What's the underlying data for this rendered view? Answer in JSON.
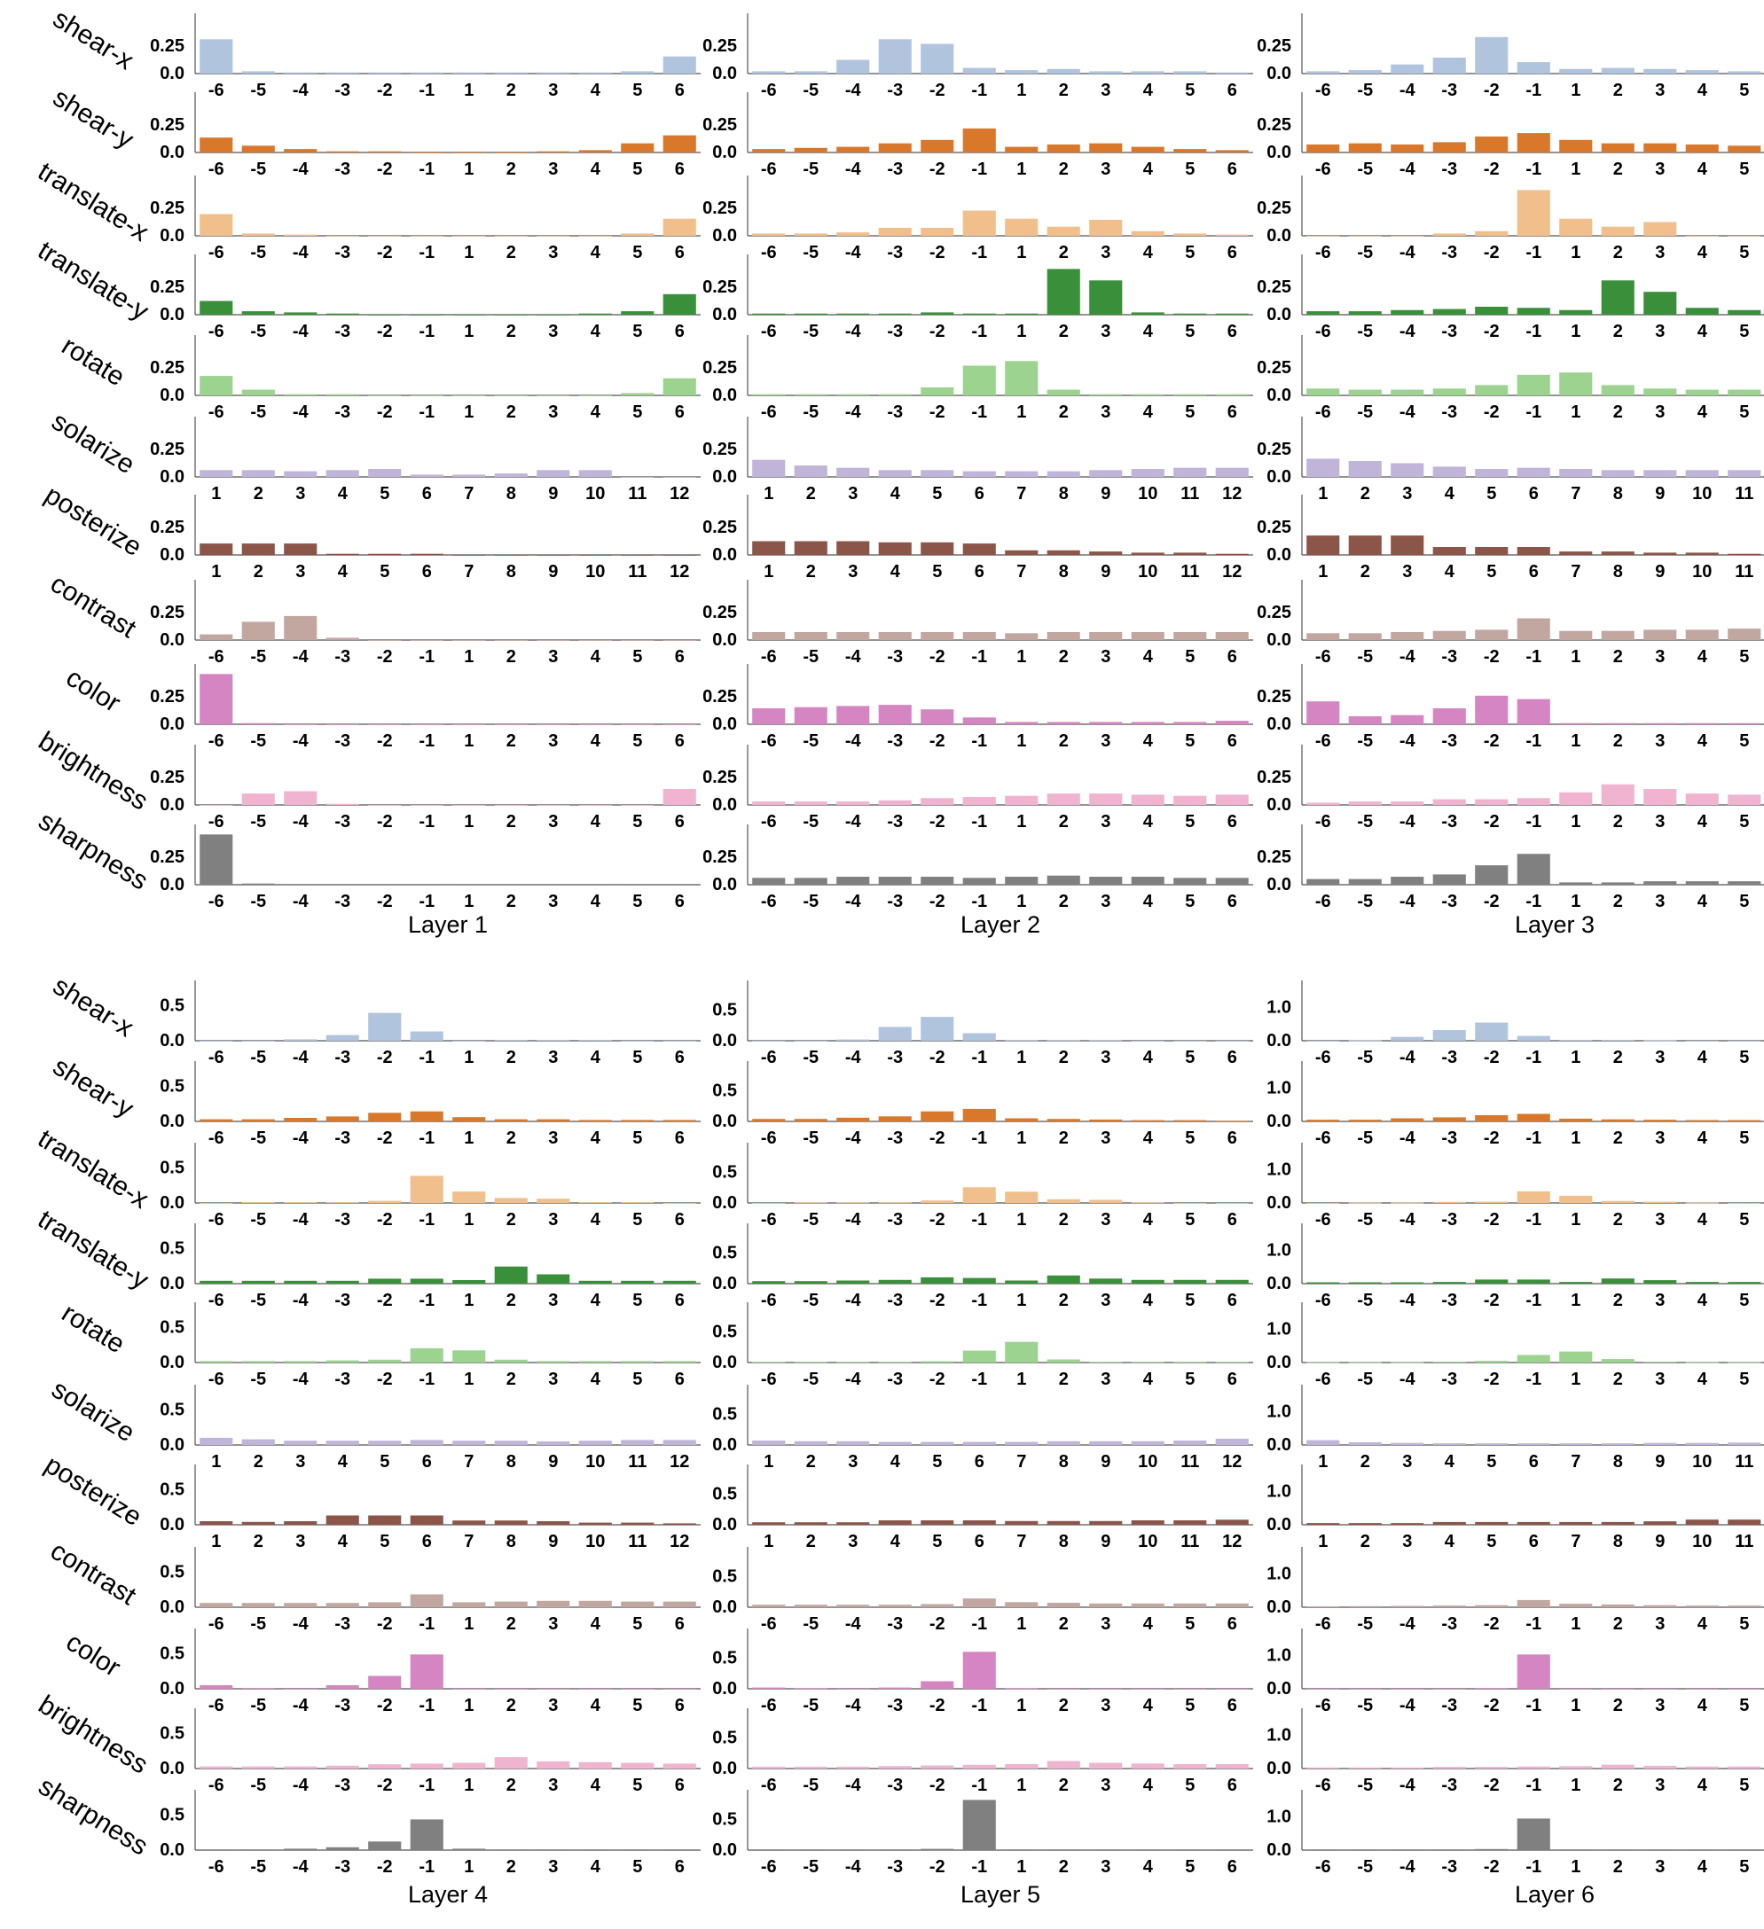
{
  "colors": {
    "shear-x": "#b0c4de",
    "shear-y": "#d9782b",
    "translate-x": "#f0bf8c",
    "translate-y": "#3a8f3a",
    "rotate": "#9bd38f",
    "solarize": "#c0b4d8",
    "posterize": "#8b5549",
    "contrast": "#c2a7a1",
    "color": "#d585c1",
    "brightness": "#f0b4d1",
    "sharpness": "#808080"
  },
  "chart_data": {
    "type": "bar",
    "operations": [
      "shear-x",
      "shear-y",
      "translate-x",
      "translate-y",
      "rotate",
      "solarize",
      "posterize",
      "contrast",
      "color",
      "brightness",
      "sharpness"
    ],
    "categories_signed": [
      "-6",
      "-5",
      "-4",
      "-3",
      "-2",
      "-1",
      "1",
      "2",
      "3",
      "4",
      "5",
      "6"
    ],
    "categories_levels": [
      "1",
      "2",
      "3",
      "4",
      "5",
      "6",
      "7",
      "8",
      "9",
      "10",
      "11",
      "12"
    ],
    "level_operations": [
      "solarize",
      "posterize"
    ],
    "grid": false,
    "legend": "none",
    "layers": [
      {
        "title": "Layer 1",
        "ytick_labels": [
          "0.0",
          "0.25"
        ],
        "ylim": [
          0,
          0.45
        ],
        "series": {
          "shear-x": [
            0.3,
            0.02,
            0.01,
            0.01,
            0.01,
            0.01,
            0.01,
            0.01,
            0.01,
            0.01,
            0.02,
            0.15
          ],
          "shear-y": [
            0.13,
            0.06,
            0.03,
            0.01,
            0.01,
            0.0,
            0.0,
            0.0,
            0.01,
            0.02,
            0.08,
            0.15
          ],
          "translate-x": [
            0.19,
            0.02,
            0.01,
            0.0,
            0.0,
            0.0,
            0.0,
            0.0,
            0.0,
            0.0,
            0.02,
            0.15
          ],
          "translate-y": [
            0.12,
            0.03,
            0.02,
            0.01,
            0.0,
            0.0,
            0.0,
            0.0,
            0.0,
            0.01,
            0.03,
            0.18
          ],
          "rotate": [
            0.17,
            0.05,
            0.01,
            0.01,
            0.0,
            0.0,
            0.0,
            0.0,
            0.0,
            0.0,
            0.02,
            0.15
          ],
          "solarize": [
            0.06,
            0.06,
            0.05,
            0.06,
            0.07,
            0.02,
            0.02,
            0.03,
            0.06,
            0.06,
            0.0,
            0.0
          ],
          "posterize": [
            0.1,
            0.1,
            0.1,
            0.01,
            0.01,
            0.01,
            0.0,
            0.0,
            0.0,
            0.0,
            0.0,
            0.0
          ],
          "contrast": [
            0.05,
            0.16,
            0.21,
            0.02,
            0.0,
            0.0,
            0.0,
            0.0,
            0.0,
            0.0,
            0.0,
            0.0
          ],
          "color": [
            0.44,
            0.01,
            0.0,
            0.0,
            0.0,
            0.0,
            0.0,
            0.0,
            0.0,
            0.0,
            0.0,
            0.0
          ],
          "brightness": [
            0.0,
            0.1,
            0.12,
            0.01,
            0.0,
            0.0,
            0.0,
            0.0,
            0.0,
            0.0,
            0.0,
            0.14
          ],
          "sharpness": [
            0.44,
            0.01,
            0.0,
            0.0,
            0.0,
            0.0,
            0.0,
            0.0,
            0.0,
            0.0,
            0.0,
            0.0
          ]
        }
      },
      {
        "title": "Layer 2",
        "ytick_labels": [
          "0.0",
          "0.25"
        ],
        "ylim": [
          0,
          0.45
        ],
        "series": {
          "shear-x": [
            0.02,
            0.02,
            0.12,
            0.3,
            0.26,
            0.05,
            0.03,
            0.04,
            0.02,
            0.02,
            0.02,
            0.01
          ],
          "shear-y": [
            0.03,
            0.04,
            0.05,
            0.08,
            0.11,
            0.21,
            0.05,
            0.07,
            0.08,
            0.05,
            0.03,
            0.02
          ],
          "translate-x": [
            0.02,
            0.02,
            0.03,
            0.07,
            0.07,
            0.22,
            0.15,
            0.08,
            0.14,
            0.04,
            0.02,
            0.01
          ],
          "translate-y": [
            0.01,
            0.01,
            0.01,
            0.01,
            0.02,
            0.01,
            0.01,
            0.4,
            0.3,
            0.02,
            0.01,
            0.01
          ],
          "rotate": [
            0.01,
            0.01,
            0.01,
            0.01,
            0.07,
            0.26,
            0.3,
            0.05,
            0.01,
            0.01,
            0.01,
            0.01
          ],
          "solarize": [
            0.15,
            0.1,
            0.08,
            0.06,
            0.06,
            0.05,
            0.05,
            0.05,
            0.06,
            0.07,
            0.08,
            0.08
          ],
          "posterize": [
            0.12,
            0.12,
            0.12,
            0.11,
            0.11,
            0.1,
            0.04,
            0.04,
            0.03,
            0.02,
            0.02,
            0.01
          ],
          "contrast": [
            0.07,
            0.07,
            0.07,
            0.07,
            0.07,
            0.07,
            0.06,
            0.07,
            0.07,
            0.07,
            0.07,
            0.07
          ],
          "color": [
            0.14,
            0.15,
            0.16,
            0.17,
            0.13,
            0.06,
            0.02,
            0.02,
            0.02,
            0.02,
            0.02,
            0.03
          ],
          "brightness": [
            0.03,
            0.03,
            0.03,
            0.04,
            0.06,
            0.07,
            0.08,
            0.1,
            0.1,
            0.09,
            0.08,
            0.09
          ],
          "sharpness": [
            0.06,
            0.06,
            0.07,
            0.07,
            0.07,
            0.06,
            0.07,
            0.08,
            0.07,
            0.07,
            0.06,
            0.06
          ]
        }
      },
      {
        "title": "Layer 3",
        "ytick_labels": [
          "0.0",
          "0.25"
        ],
        "ylim": [
          0,
          0.45
        ],
        "series": {
          "shear-x": [
            0.02,
            0.03,
            0.08,
            0.14,
            0.32,
            0.1,
            0.04,
            0.05,
            0.04,
            0.03,
            0.02,
            0.01
          ],
          "shear-y": [
            0.07,
            0.08,
            0.07,
            0.09,
            0.14,
            0.17,
            0.11,
            0.08,
            0.08,
            0.07,
            0.06,
            0.06
          ],
          "translate-x": [
            0.0,
            0.0,
            0.0,
            0.02,
            0.04,
            0.4,
            0.15,
            0.08,
            0.12,
            0.0,
            0.0,
            0.0
          ],
          "translate-y": [
            0.03,
            0.03,
            0.04,
            0.05,
            0.07,
            0.06,
            0.04,
            0.3,
            0.2,
            0.06,
            0.04,
            0.03
          ],
          "rotate": [
            0.06,
            0.05,
            0.05,
            0.06,
            0.09,
            0.18,
            0.2,
            0.09,
            0.06,
            0.05,
            0.05,
            0.05
          ],
          "solarize": [
            0.16,
            0.14,
            0.12,
            0.09,
            0.07,
            0.08,
            0.07,
            0.06,
            0.06,
            0.06,
            0.06,
            0.07
          ],
          "posterize": [
            0.17,
            0.17,
            0.17,
            0.07,
            0.07,
            0.07,
            0.03,
            0.03,
            0.02,
            0.02,
            0.01,
            0.01
          ],
          "contrast": [
            0.06,
            0.06,
            0.07,
            0.08,
            0.09,
            0.19,
            0.08,
            0.08,
            0.09,
            0.09,
            0.1,
            0.11
          ],
          "color": [
            0.2,
            0.07,
            0.08,
            0.14,
            0.25,
            0.22,
            0.01,
            0.01,
            0.01,
            0.01,
            0.01,
            0.01
          ],
          "brightness": [
            0.02,
            0.03,
            0.03,
            0.05,
            0.05,
            0.06,
            0.11,
            0.18,
            0.14,
            0.1,
            0.09,
            0.08
          ],
          "sharpness": [
            0.05,
            0.05,
            0.07,
            0.09,
            0.17,
            0.27,
            0.02,
            0.02,
            0.03,
            0.03,
            0.03,
            0.02
          ]
        }
      },
      {
        "title": "Layer 4",
        "ytick_labels": [
          "0.0",
          "0.5"
        ],
        "ylim": [
          0,
          0.72
        ],
        "series": {
          "shear-x": [
            0.0,
            0.0,
            0.02,
            0.08,
            0.39,
            0.13,
            0.0,
            0.01,
            0.01,
            0.01,
            0.0,
            0.0
          ],
          "shear-y": [
            0.03,
            0.03,
            0.05,
            0.07,
            0.12,
            0.14,
            0.06,
            0.03,
            0.03,
            0.02,
            0.02,
            0.02
          ],
          "translate-x": [
            0.0,
            0.01,
            0.01,
            0.01,
            0.03,
            0.38,
            0.16,
            0.07,
            0.06,
            0.01,
            0.01,
            0.0
          ],
          "translate-y": [
            0.04,
            0.04,
            0.04,
            0.04,
            0.07,
            0.07,
            0.05,
            0.24,
            0.13,
            0.04,
            0.04,
            0.04
          ],
          "rotate": [
            0.02,
            0.02,
            0.02,
            0.03,
            0.04,
            0.2,
            0.17,
            0.04,
            0.02,
            0.02,
            0.02,
            0.02
          ],
          "solarize": [
            0.1,
            0.08,
            0.06,
            0.06,
            0.06,
            0.07,
            0.06,
            0.06,
            0.05,
            0.06,
            0.07,
            0.07
          ],
          "posterize": [
            0.05,
            0.04,
            0.05,
            0.13,
            0.13,
            0.13,
            0.06,
            0.06,
            0.05,
            0.03,
            0.03,
            0.02
          ],
          "contrast": [
            0.06,
            0.06,
            0.06,
            0.06,
            0.07,
            0.18,
            0.07,
            0.08,
            0.09,
            0.09,
            0.08,
            0.08
          ],
          "color": [
            0.05,
            0.01,
            0.0,
            0.05,
            0.18,
            0.48,
            0.0,
            0.0,
            0.0,
            0.0,
            0.0,
            0.0
          ],
          "brightness": [
            0.03,
            0.03,
            0.03,
            0.04,
            0.06,
            0.07,
            0.08,
            0.16,
            0.1,
            0.09,
            0.08,
            0.07
          ],
          "sharpness": [
            0.01,
            0.01,
            0.02,
            0.04,
            0.12,
            0.43,
            0.02,
            0.01,
            0.01,
            0.0,
            0.0,
            0.0
          ]
        }
      },
      {
        "title": "Layer 5",
        "ytick_labels": [
          "0.0",
          "0.5"
        ],
        "ylim": [
          0,
          0.82
        ],
        "series": {
          "shear-x": [
            0.0,
            0.0,
            0.02,
            0.22,
            0.38,
            0.12,
            0.01,
            0.01,
            0.01,
            0.0,
            0.0,
            0.0
          ],
          "shear-y": [
            0.04,
            0.04,
            0.06,
            0.08,
            0.16,
            0.2,
            0.05,
            0.04,
            0.03,
            0.02,
            0.02,
            0.01
          ],
          "translate-x": [
            0.0,
            0.01,
            0.01,
            0.01,
            0.04,
            0.25,
            0.18,
            0.06,
            0.05,
            0.01,
            0.0,
            0.0
          ],
          "translate-y": [
            0.04,
            0.04,
            0.05,
            0.06,
            0.1,
            0.09,
            0.05,
            0.13,
            0.08,
            0.06,
            0.06,
            0.06
          ],
          "rotate": [
            0.01,
            0.01,
            0.01,
            0.01,
            0.02,
            0.19,
            0.33,
            0.05,
            0.01,
            0.01,
            0.01,
            0.01
          ],
          "solarize": [
            0.07,
            0.06,
            0.06,
            0.05,
            0.05,
            0.05,
            0.05,
            0.06,
            0.06,
            0.06,
            0.07,
            0.1
          ],
          "posterize": [
            0.04,
            0.04,
            0.04,
            0.07,
            0.07,
            0.07,
            0.06,
            0.06,
            0.06,
            0.07,
            0.07,
            0.08
          ],
          "contrast": [
            0.04,
            0.04,
            0.04,
            0.04,
            0.05,
            0.14,
            0.08,
            0.07,
            0.06,
            0.06,
            0.06,
            0.06
          ],
          "color": [
            0.02,
            0.01,
            0.0,
            0.02,
            0.12,
            0.59,
            0.01,
            0.0,
            0.0,
            0.0,
            0.0,
            0.0
          ],
          "brightness": [
            0.03,
            0.03,
            0.03,
            0.04,
            0.05,
            0.06,
            0.07,
            0.12,
            0.09,
            0.08,
            0.07,
            0.07
          ],
          "sharpness": [
            0.0,
            0.0,
            0.0,
            0.0,
            0.02,
            0.8,
            0.0,
            0.0,
            0.0,
            0.0,
            0.0,
            0.0
          ]
        }
      },
      {
        "title": "Layer 6",
        "ytick_labels": [
          "0.0",
          "1.0"
        ],
        "ylim": [
          0,
          1.5
        ],
        "series": {
          "shear-x": [
            0.0,
            0.01,
            0.11,
            0.31,
            0.53,
            0.14,
            0.02,
            0.02,
            0.01,
            0.0,
            0.0,
            0.0
          ],
          "shear-y": [
            0.05,
            0.05,
            0.09,
            0.12,
            0.18,
            0.22,
            0.08,
            0.06,
            0.05,
            0.04,
            0.04,
            0.04
          ],
          "translate-x": [
            0.0,
            0.01,
            0.01,
            0.03,
            0.04,
            0.34,
            0.21,
            0.06,
            0.04,
            0.01,
            0.0,
            0.0
          ],
          "translate-y": [
            0.04,
            0.04,
            0.04,
            0.05,
            0.12,
            0.12,
            0.05,
            0.15,
            0.1,
            0.05,
            0.05,
            0.05
          ],
          "rotate": [
            0.01,
            0.01,
            0.01,
            0.02,
            0.05,
            0.22,
            0.32,
            0.1,
            0.02,
            0.01,
            0.01,
            0.01
          ],
          "solarize": [
            0.14,
            0.08,
            0.06,
            0.05,
            0.05,
            0.05,
            0.05,
            0.05,
            0.06,
            0.06,
            0.07,
            0.13
          ],
          "posterize": [
            0.05,
            0.05,
            0.05,
            0.08,
            0.08,
            0.08,
            0.08,
            0.08,
            0.1,
            0.15,
            0.15,
            0.16
          ],
          "contrast": [
            0.02,
            0.03,
            0.04,
            0.05,
            0.06,
            0.21,
            0.1,
            0.08,
            0.06,
            0.05,
            0.05,
            0.05
          ],
          "color": [
            0.0,
            0.0,
            0.0,
            0.0,
            0.02,
            1.0,
            0.0,
            0.0,
            0.0,
            0.0,
            0.0,
            0.0
          ],
          "brightness": [
            0.03,
            0.03,
            0.03,
            0.05,
            0.05,
            0.06,
            0.07,
            0.11,
            0.08,
            0.06,
            0.06,
            0.06
          ],
          "sharpness": [
            0.0,
            0.0,
            0.0,
            0.0,
            0.03,
            0.92,
            0.0,
            0.0,
            0.0,
            0.0,
            0.0,
            0.0
          ]
        }
      }
    ]
  }
}
